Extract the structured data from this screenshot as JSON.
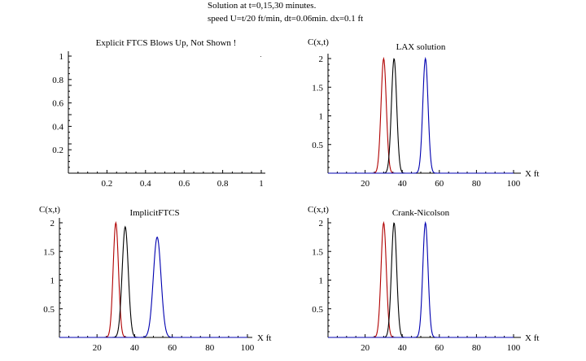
{
  "header": {
    "line1": "Solution at t=0,15,30 minutes.",
    "line2": "speed U=t/20 ft/min,  dt=0.06min.   dx=0.1 ft"
  },
  "colors": {
    "t0": "#b00000",
    "t15": "#000000",
    "t30": "#0000b0",
    "axis": "#000000"
  },
  "chart_data": [
    {
      "type": "line",
      "title": "Explicit FTCS Blows Up, Not Shown !",
      "xlabel": "",
      "ylabel": "",
      "xlim": [
        0,
        1
      ],
      "ylim": [
        0,
        1
      ],
      "xticks": [
        0.2,
        0.4,
        0.6,
        0.8,
        1
      ],
      "xtick_labels": [
        "0.2",
        "0.4",
        "0.6",
        "0.8",
        "1"
      ],
      "yticks": [
        0.2,
        0.4,
        0.6,
        0.8,
        1
      ],
      "ytick_labels": [
        "0.2",
        "0.4",
        "0.6",
        "0.8",
        "1"
      ],
      "series": []
    },
    {
      "type": "line",
      "title": "LAX solution",
      "xlabel": "X ft",
      "ylabel": "C(x,t)",
      "xlim": [
        0,
        100
      ],
      "ylim": [
        0,
        2
      ],
      "xticks": [
        20,
        40,
        60,
        80,
        100
      ],
      "xtick_labels": [
        "20",
        "40",
        "60",
        "80",
        "100"
      ],
      "yticks": [
        0.5,
        1,
        1.5,
        2
      ],
      "ytick_labels": [
        "0.5",
        "1",
        "1.5",
        "2"
      ],
      "series": [
        {
          "name": "t=0",
          "color": "#b00000",
          "center": 30,
          "peak": 2,
          "width": 2.0,
          "range": [
            -1,
            1
          ]
        },
        {
          "name": "t=15",
          "color": "#000000",
          "center": 35.6,
          "peak": 2,
          "width": 2.0,
          "range": [
            -1,
            1
          ]
        },
        {
          "name": "t=30",
          "color": "#0000b0",
          "center": 52.5,
          "peak": 2,
          "width": 2.0,
          "range": [
            -1,
            1
          ]
        }
      ]
    },
    {
      "type": "line",
      "title": "ImplicitFTCS",
      "xlabel": "X ft",
      "ylabel": "C(x,t)",
      "xlim": [
        0,
        100
      ],
      "ylim": [
        0,
        2
      ],
      "xticks": [
        20,
        40,
        60,
        80,
        100
      ],
      "xtick_labels": [
        "20",
        "40",
        "60",
        "80",
        "100"
      ],
      "yticks": [
        0.5,
        1,
        1.5,
        2
      ],
      "ytick_labels": [
        "0.5",
        "1",
        "1.5",
        "2"
      ],
      "series": [
        {
          "name": "t=0",
          "color": "#b00000",
          "center": 30,
          "peak": 2,
          "width": 2.0,
          "range": [
            -1,
            1
          ]
        },
        {
          "name": "t=15",
          "color": "#000000",
          "center": 35,
          "peak": 1.93,
          "width": 2.3,
          "range": [
            -1,
            1
          ]
        },
        {
          "name": "t=30",
          "color": "#0000b0",
          "center": 52,
          "peak": 1.75,
          "width": 2.9,
          "range": [
            -1,
            1
          ]
        }
      ]
    },
    {
      "type": "line",
      "title": "Crank-Nicolson",
      "xlabel": "X ft",
      "ylabel": "C(x,t)",
      "xlim": [
        0,
        100
      ],
      "ylim": [
        0,
        2
      ],
      "xticks": [
        20,
        40,
        60,
        80,
        100
      ],
      "xtick_labels": [
        "20",
        "40",
        "60",
        "80",
        "100"
      ],
      "yticks": [
        0.5,
        1,
        1.5,
        2
      ],
      "ytick_labels": [
        "0.5",
        "1",
        "1.5",
        "2"
      ],
      "series": [
        {
          "name": "t=0",
          "color": "#b00000",
          "center": 30,
          "peak": 2,
          "width": 2.0,
          "range": [
            -1,
            1
          ]
        },
        {
          "name": "t=15",
          "color": "#000000",
          "center": 35.6,
          "peak": 2,
          "width": 2.0,
          "range": [
            -1,
            1
          ]
        },
        {
          "name": "t=30",
          "color": "#0000b0",
          "center": 52.5,
          "peak": 2,
          "width": 2.0,
          "range": [
            -1,
            1
          ]
        }
      ]
    }
  ]
}
